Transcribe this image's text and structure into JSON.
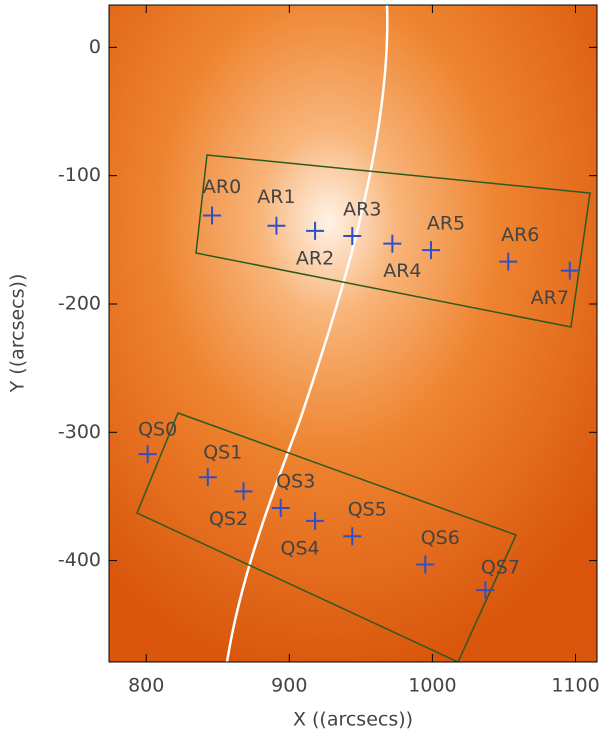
{
  "chart_data": {
    "type": "scatter",
    "xlabel": "X ((arcsecs))",
    "ylabel": "Y ((arcsecs))",
    "labels": [
      "AR0",
      "AR1",
      "AR2",
      "AR3",
      "AR4",
      "AR5",
      "AR6",
      "AR7",
      "QS0",
      "QS1",
      "QS2",
      "QS3",
      "QS4",
      "QS5",
      "QS6",
      "QS7"
    ],
    "x": [
      846,
      891,
      918,
      944,
      972,
      999,
      1053,
      1096,
      801,
      843,
      868,
      894,
      918,
      944,
      995,
      1037
    ],
    "y": [
      -131,
      -139,
      -143,
      -147,
      -153,
      -158,
      -167,
      -174,
      -317,
      -335,
      -346,
      -359,
      -369,
      -381,
      -403,
      -423
    ],
    "color": "#2f4fc8",
    "xlim": [
      774,
      1115
    ],
    "ylim": [
      -479,
      33
    ],
    "xticks": [
      800,
      900,
      1000,
      1100
    ],
    "yticks": [
      0,
      -100,
      -200,
      -300,
      -400
    ]
  }
}
